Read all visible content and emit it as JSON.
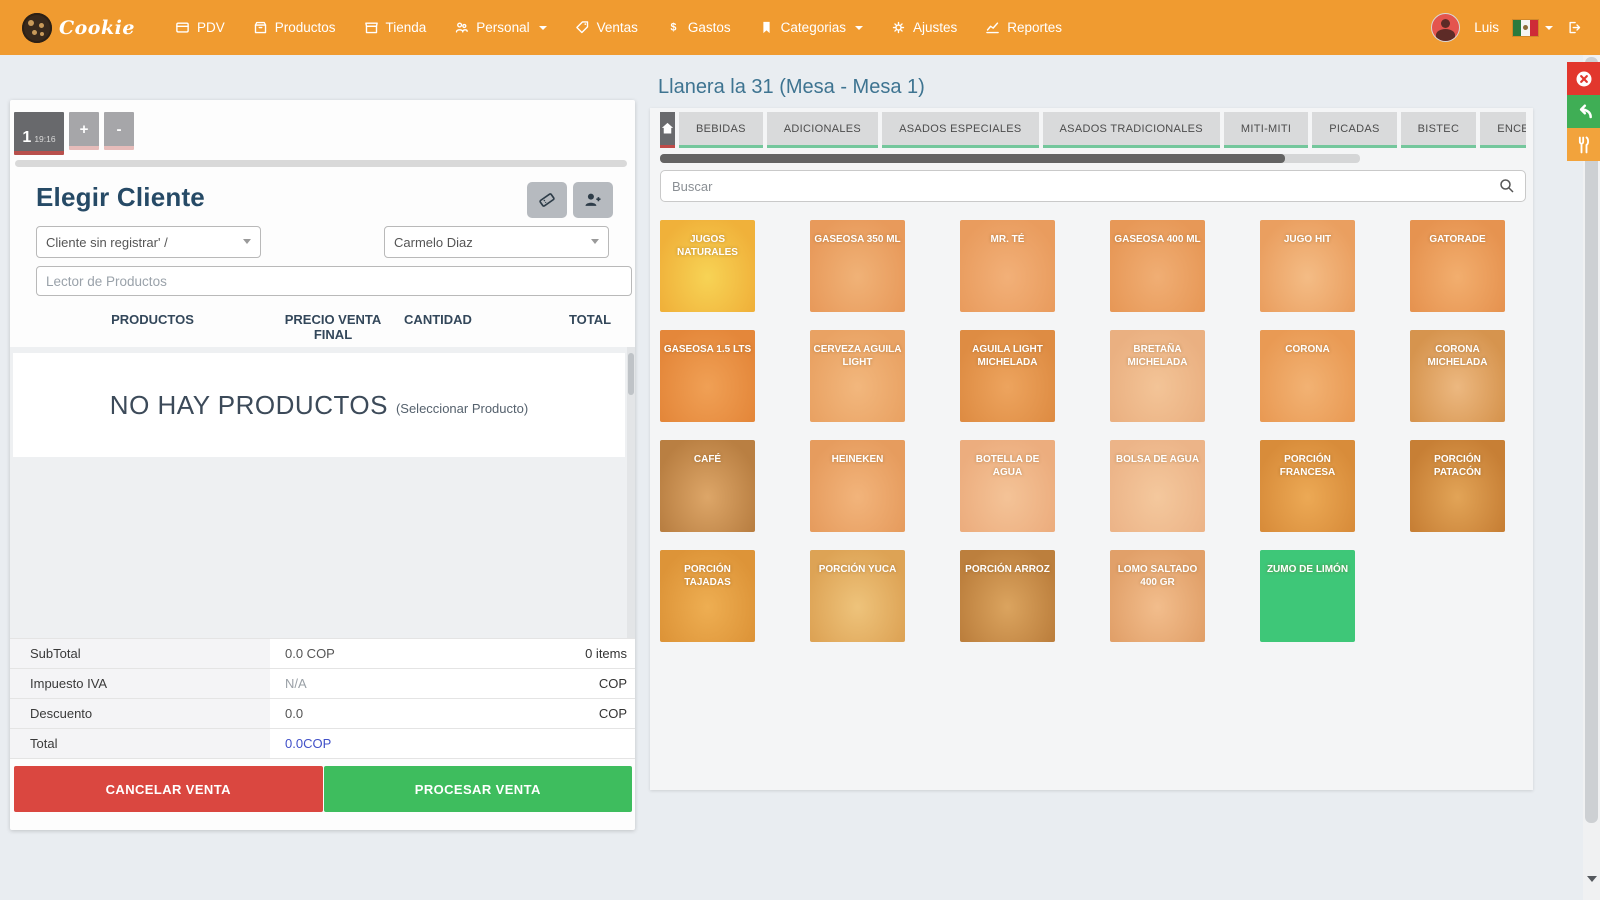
{
  "navbar": {
    "brand": "Cookie",
    "items": [
      {
        "label": "PDV",
        "icon": "register-icon",
        "caret": false
      },
      {
        "label": "Productos",
        "icon": "box-icon",
        "caret": false
      },
      {
        "label": "Tienda",
        "icon": "store-icon",
        "caret": false
      },
      {
        "label": "Personal",
        "icon": "people-icon",
        "caret": true
      },
      {
        "label": "Ventas",
        "icon": "tag-icon",
        "caret": false
      },
      {
        "label": "Gastos",
        "icon": "dollar-icon",
        "caret": false
      },
      {
        "label": "Categorias",
        "icon": "bookmark-icon",
        "caret": true
      },
      {
        "label": "Ajustes",
        "icon": "gear-icon",
        "caret": false
      },
      {
        "label": "Reportes",
        "icon": "chart-icon",
        "caret": false
      }
    ],
    "user": {
      "name": "Luis"
    },
    "flag": "mexico-flag"
  },
  "sale_panel": {
    "tab": {
      "number": "1",
      "time": "19:16"
    },
    "add_tab_label": "+",
    "remove_tab_label": "-",
    "customer_heading": "Elegir Cliente",
    "customer_select": "Cliente sin registrar' /",
    "seller_select": "Carmelo Diaz",
    "scanner_placeholder": "Lector de Productos",
    "table_headers": {
      "products": "PRODUCTOS",
      "price": "PRECIO VENTA FINAL",
      "quantity": "CANTIDAD",
      "total": "TOTAL"
    },
    "empty_state": {
      "title": "NO HAY PRODUCTOS",
      "subtitle": "(Seleccionar Producto)"
    },
    "totals": [
      {
        "label": "SubTotal",
        "value": "0.0 COP",
        "right": "0 items",
        "style": "normal"
      },
      {
        "label": "Impuesto IVA",
        "value": "N/A",
        "right": "COP",
        "style": "muted"
      },
      {
        "label": "Descuento",
        "value": "0.0",
        "right": "COP",
        "style": "normal"
      },
      {
        "label": "Total",
        "value": "0.0COP",
        "right": "",
        "style": "blue"
      }
    ],
    "cancel_label": "CANCELAR VENTA",
    "process_label": "PROCESAR VENTA"
  },
  "catalog": {
    "title": "Llanera la 31 (Mesa - Mesa 1)",
    "categories": [
      "BEBIDAS",
      "ADICIONALES",
      "ASADOS ESPECIALES",
      "ASADOS TRADICIONALES",
      "MITI-MITI",
      "PICADAS",
      "BISTEC",
      "ENCEBOLLADO"
    ],
    "search_placeholder": "Buscar",
    "products": [
      {
        "name": "JUGOS NATURALES",
        "c1": "#f7d355",
        "c2": "#f0b13a"
      },
      {
        "name": "GASEOSA 350 ML",
        "c1": "#f0b277",
        "c2": "#e89a5b"
      },
      {
        "name": "MR. TÉ",
        "c1": "#f2b078",
        "c2": "#e99c5e"
      },
      {
        "name": "GASEOSA 400 ML",
        "c1": "#f0ae74",
        "c2": "#e79857"
      },
      {
        "name": "JUGO HIT",
        "c1": "#f4bc85",
        "c2": "#ea9f60"
      },
      {
        "name": "GATORADE",
        "c1": "#f2ae6e",
        "c2": "#e69350"
      },
      {
        "name": "GASEOSA 1.5 LTS",
        "c1": "#f0a055",
        "c2": "#e4873a"
      },
      {
        "name": "CERVEZA AGUILA LIGHT",
        "c1": "#f2b77d",
        "c2": "#e9a263"
      },
      {
        "name": "AGUILA LIGHT MICHELADA",
        "c1": "#eda45e",
        "c2": "#de8c43"
      },
      {
        "name": "BRETAÑA MICHELADA",
        "c1": "#f3c497",
        "c2": "#eab081"
      },
      {
        "name": "CORONA",
        "c1": "#f2b273",
        "c2": "#e99a54"
      },
      {
        "name": "CORONA MICHELADA",
        "c1": "#ecb880",
        "c2": "#d6944e"
      },
      {
        "name": "CAFÉ",
        "c1": "#dda668",
        "c2": "#b97f42"
      },
      {
        "name": "HEINEKEN",
        "c1": "#f2b47b",
        "c2": "#e69c5e"
      },
      {
        "name": "BOTELLA DE AGUA",
        "c1": "#f4c397",
        "c2": "#ecad7e"
      },
      {
        "name": "BOLSA DE AGUA",
        "c1": "#f4c89d",
        "c2": "#ecb488"
      },
      {
        "name": "PORCIÓN FRANCESA",
        "c1": "#eca955",
        "c2": "#d88c3a"
      },
      {
        "name": "PORCIÓN PATACÓN",
        "c1": "#e2a457",
        "c2": "#c77f35"
      },
      {
        "name": "PORCIÓN TAJADAS",
        "c1": "#eeae52",
        "c2": "#dd9438"
      },
      {
        "name": "PORCIÓN YUCA",
        "c1": "#eec37b",
        "c2": "#dda355"
      },
      {
        "name": "PORCIÓN ARROZ",
        "c1": "#dba45f",
        "c2": "#bc7f3d"
      },
      {
        "name": "LOMO SALTADO 400 GR",
        "c1": "#f2bd8c",
        "c2": "#e1a069"
      },
      {
        "name": "ZUMO DE LIMÓN",
        "c1": "#3ec778",
        "c2": "#3ec778"
      }
    ]
  },
  "side_actions": [
    {
      "name": "close-sale-button",
      "icon": "circle-x-icon",
      "color": "#e2372d"
    },
    {
      "name": "back-button",
      "icon": "back-arrow-icon",
      "color": "#3fae55"
    },
    {
      "name": "kitchen-button",
      "icon": "cutlery-icon",
      "color": "#f2a33c"
    }
  ],
  "colors": {
    "navbar": "#f09b30",
    "cancel_red": "#da4740",
    "process_green": "#3ebd5e",
    "active_tab_dark": "#68696c",
    "tab_underline_red": "#b8504c",
    "tab_underline_green": "#74c79c",
    "total_blue": "#4050c8",
    "heading_navy": "#264a66",
    "title_steel": "#3e7491",
    "green_tile": "#3ec778"
  }
}
